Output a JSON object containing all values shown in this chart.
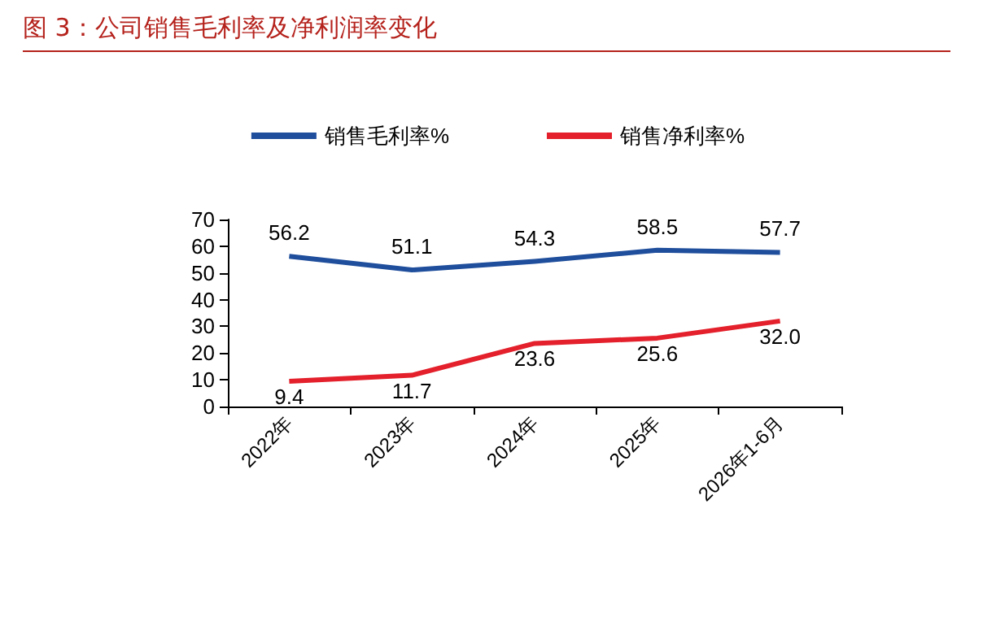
{
  "chart_data": {
    "type": "line",
    "title": "图 3：公司销售毛利率及净利润率变化",
    "categories": [
      "2022年",
      "2023年",
      "2024年",
      "2025年",
      "2026年1-6月"
    ],
    "series": [
      {
        "name": "销售毛利率%",
        "color": "#1f4e9c",
        "values": [
          56.2,
          51.1,
          54.3,
          58.5,
          57.7
        ],
        "value_labels": [
          "56.2",
          "51.1",
          "54.3",
          "58.5",
          "57.7"
        ]
      },
      {
        "name": "销售净利率%",
        "color": "#e3202b",
        "values": [
          9.4,
          11.7,
          23.6,
          25.6,
          32.0
        ],
        "value_labels": [
          "9.4",
          "11.7",
          "23.6",
          "25.6",
          "32.0"
        ]
      }
    ],
    "ylim": [
      0,
      70
    ],
    "yticks": [
      0,
      10,
      20,
      30,
      40,
      50,
      60,
      70
    ],
    "grid": false,
    "legend": "top",
    "marker": "none",
    "line_style": "solid"
  }
}
